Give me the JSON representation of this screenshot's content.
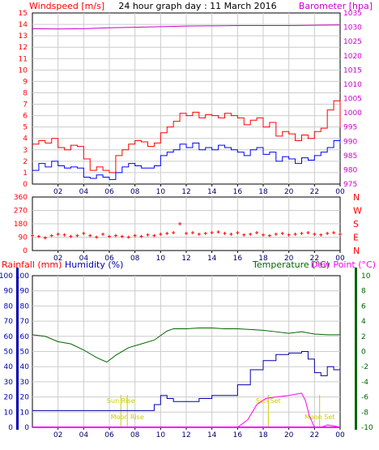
{
  "colors": {
    "wind_gust": "#ff0000",
    "wind_avg": "#0000ff",
    "barometer": "#cc00cc",
    "direction": "#ff0000",
    "rain": "#ff00ff",
    "humidity": "#0000aa",
    "temperature": "#006600",
    "dewpoint": "#ff00ff",
    "annotation": "#cccc00",
    "grid": "#cccccc"
  },
  "chart_data": [
    {
      "type": "line",
      "title": "24 hour graph day : 11 March 2016",
      "ylabel": "Windspeed [m/s]",
      "y2label": "Barometer [hpa]",
      "x_ticks": [
        "02",
        "04",
        "06",
        "08",
        "10",
        "12",
        "14",
        "16",
        "18",
        "20",
        "22",
        "00"
      ],
      "xlim": [
        0,
        24
      ],
      "ylim": [
        0,
        15
      ],
      "y_ticks": [
        0,
        1,
        2,
        3,
        4,
        5,
        6,
        7,
        8,
        9,
        10,
        11,
        12,
        13,
        14,
        15
      ],
      "y2lim": [
        975,
        1035
      ],
      "y2_ticks": [
        975,
        980,
        985,
        990,
        995,
        1000,
        1005,
        1010,
        1015,
        1020,
        1025,
        1030,
        1035
      ],
      "grid": true,
      "series": [
        {
          "key": "gust",
          "x": [
            0,
            0.5,
            1,
            1.5,
            2,
            2.5,
            3,
            3.5,
            4,
            4.5,
            5,
            5.5,
            6,
            6.5,
            7,
            7.5,
            8,
            8.5,
            9,
            9.5,
            10,
            10.5,
            11,
            11.5,
            12,
            12.5,
            13,
            13.5,
            14,
            14.5,
            15,
            15.5,
            16,
            16.5,
            17,
            17.5,
            18,
            18.5,
            19,
            19.5,
            20,
            20.5,
            21,
            21.5,
            22,
            22.5,
            23,
            23.5,
            24
          ],
          "values": [
            3.5,
            3.8,
            3.6,
            4.0,
            3.2,
            3.0,
            3.4,
            3.3,
            2.2,
            1.2,
            1.5,
            1.2,
            1.0,
            2.5,
            3.0,
            3.5,
            3.8,
            3.7,
            3.3,
            3.6,
            4.5,
            5.0,
            5.5,
            6.2,
            6.0,
            6.3,
            5.8,
            6.1,
            6.0,
            5.8,
            6.2,
            6.0,
            5.8,
            5.2,
            5.6,
            5.8,
            5.0,
            5.4,
            4.2,
            4.6,
            4.4,
            3.8,
            4.3,
            4.0,
            4.6,
            4.9,
            6.5,
            7.3,
            5.0
          ]
        },
        {
          "key": "avg",
          "x": [
            0,
            0.5,
            1,
            1.5,
            2,
            2.5,
            3,
            3.5,
            4,
            4.5,
            5,
            5.5,
            6,
            6.5,
            7,
            7.5,
            8,
            8.5,
            9,
            9.5,
            10,
            10.5,
            11,
            11.5,
            12,
            12.5,
            13,
            13.5,
            14,
            14.5,
            15,
            15.5,
            16,
            16.5,
            17,
            17.5,
            18,
            18.5,
            19,
            19.5,
            20,
            20.5,
            21,
            21.5,
            22,
            22.5,
            23,
            23.5,
            24
          ],
          "values": [
            1.2,
            1.8,
            1.5,
            2.0,
            1.6,
            1.4,
            1.5,
            1.4,
            0.6,
            0.5,
            0.8,
            0.6,
            0.4,
            1.0,
            1.5,
            1.8,
            1.6,
            1.4,
            1.4,
            1.6,
            2.5,
            2.8,
            3.0,
            3.5,
            3.2,
            3.6,
            3.0,
            3.2,
            3.0,
            3.4,
            3.2,
            3.0,
            2.8,
            2.5,
            3.0,
            3.2,
            2.6,
            2.8,
            2.0,
            2.4,
            2.2,
            1.8,
            2.3,
            2.1,
            2.5,
            2.8,
            3.2,
            3.8,
            3.5
          ]
        },
        {
          "key": "barometer",
          "axis": "y2",
          "x": [
            0,
            2,
            4,
            6,
            8,
            10,
            12,
            14,
            16,
            18,
            20,
            22,
            24
          ],
          "values": [
            1029.5,
            1029.4,
            1029.5,
            1029.8,
            1030.0,
            1030.2,
            1030.4,
            1030.5,
            1030.6,
            1030.6,
            1030.6,
            1030.7,
            1030.8
          ]
        }
      ]
    },
    {
      "type": "scatter",
      "y2label_letters": [
        "N",
        "W",
        "S",
        "E",
        "N"
      ],
      "x_ticks": [
        "02",
        "04",
        "06",
        "08",
        "10",
        "12",
        "14",
        "16",
        "18",
        "20",
        "22",
        "00"
      ],
      "xlim": [
        0,
        24
      ],
      "ylim": [
        0,
        360
      ],
      "y_ticks": [
        0,
        90,
        180,
        270,
        360
      ],
      "grid": true,
      "series": [
        {
          "key": "direction",
          "x": [
            0,
            0.5,
            1,
            1.5,
            2,
            2.5,
            3,
            3.5,
            4,
            4.5,
            5,
            5.5,
            6,
            6.5,
            7,
            7.5,
            8,
            8.5,
            9,
            9.5,
            10,
            10.5,
            11,
            11.5,
            12,
            12.5,
            13,
            13.5,
            14,
            14.5,
            15,
            15.5,
            16,
            16.5,
            17,
            17.5,
            18,
            18.5,
            19,
            19.5,
            20,
            20.5,
            21,
            21.5,
            22,
            22.5,
            23,
            23.5,
            24
          ],
          "values": [
            100,
            95,
            85,
            100,
            110,
            105,
            95,
            100,
            115,
            100,
            90,
            110,
            95,
            100,
            95,
            90,
            100,
            95,
            105,
            100,
            110,
            115,
            120,
            180,
            115,
            120,
            110,
            115,
            120,
            125,
            115,
            110,
            120,
            105,
            110,
            120,
            105,
            100,
            110,
            115,
            105,
            110,
            115,
            120,
            110,
            105,
            115,
            120,
            110
          ]
        }
      ]
    },
    {
      "type": "line",
      "ylabel": "Rainfall (mm)",
      "ylabel2": "Humidity (%)",
      "y2label": "Temperature (°C)",
      "y2label2": "Dew Point (°C)",
      "x_ticks": [
        "02",
        "04",
        "06",
        "08",
        "10",
        "12",
        "14",
        "16",
        "18",
        "20",
        "22",
        "00"
      ],
      "xlim": [
        0,
        24
      ],
      "ylim": [
        0,
        100
      ],
      "y_ticks": [
        0,
        10,
        20,
        30,
        40,
        50,
        60,
        70,
        80,
        90,
        100
      ],
      "y2lim": [
        -10,
        10
      ],
      "y2_ticks": [
        -10,
        -8,
        -6,
        -4,
        -2,
        0,
        2,
        4,
        6,
        8,
        10
      ],
      "grid": true,
      "annotations": [
        {
          "label": "Sun Rise",
          "x": 6.9
        },
        {
          "label": "Moon Rise",
          "x": 7.4
        },
        {
          "label": "Sun Set",
          "x": 18.4
        },
        {
          "label": "Moon Set",
          "x": 22.4
        }
      ],
      "series": [
        {
          "key": "temperature",
          "axis": "y2",
          "x": [
            0,
            1,
            2,
            3,
            4,
            5,
            5.8,
            6.5,
            7.5,
            8.5,
            9.5,
            10.5,
            11,
            12,
            13,
            14,
            15,
            16,
            17,
            18,
            19,
            20,
            21,
            22,
            23,
            24
          ],
          "values": [
            2.2,
            2.0,
            1.3,
            1.0,
            0.2,
            -0.8,
            -1.4,
            -0.5,
            0.5,
            1.0,
            1.5,
            2.7,
            3.0,
            3.0,
            3.1,
            3.1,
            3.0,
            3.0,
            2.9,
            2.8,
            2.6,
            2.4,
            2.6,
            2.3,
            2.2,
            2.2
          ]
        },
        {
          "key": "humidity",
          "x": [
            0,
            2,
            4,
            6,
            8,
            9,
            9.5,
            10,
            10.5,
            11,
            12,
            13,
            14,
            15,
            16,
            17,
            18,
            19,
            20,
            21,
            21.5,
            22,
            22.5,
            23,
            23.5,
            24
          ],
          "values": [
            11,
            11,
            11,
            11,
            11,
            11,
            15,
            21,
            19,
            17,
            17,
            19,
            21,
            21,
            28,
            38,
            44,
            48,
            49,
            50,
            45,
            36,
            34,
            40,
            38,
            36
          ]
        },
        {
          "key": "dewpoint",
          "axis": "y2",
          "x": [
            16,
            16.8,
            17.5,
            18.2,
            19,
            20,
            21,
            21.3,
            21.6,
            22,
            22.5,
            23,
            23.5,
            24
          ],
          "values": [
            -10,
            -9.0,
            -7.0,
            -6.2,
            -6.0,
            -5.8,
            -5.5,
            -6.5,
            -8.5,
            -10,
            -10,
            -9.7,
            -9.8,
            -10
          ]
        },
        {
          "key": "rain",
          "x": [
            0,
            24
          ],
          "values": [
            0,
            0
          ]
        }
      ]
    }
  ]
}
